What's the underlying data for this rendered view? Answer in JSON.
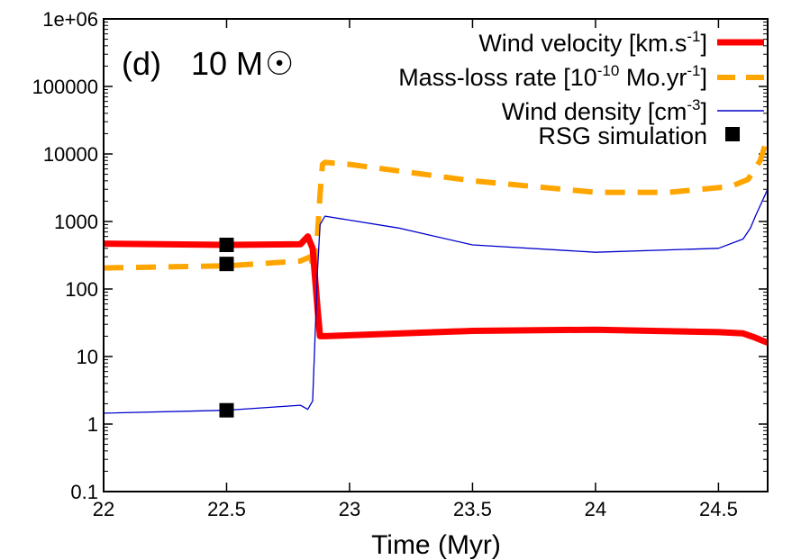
{
  "chart_data": {
    "type": "line",
    "title": "",
    "panel_label": "(d)",
    "panel_mass": "10 M",
    "panel_mass_symbol": "☉",
    "xlabel": "Time (Myr)",
    "ylabel": "",
    "xlim": [
      22,
      24.7
    ],
    "ylim": [
      0.1,
      1000000
    ],
    "yscale": "log",
    "grid": false,
    "legend_position": "top-right",
    "x_ticks": [
      "22",
      "22.5",
      "23",
      "23.5",
      "24",
      "24.5"
    ],
    "y_ticks": [
      "0.1",
      "1",
      "10",
      "100",
      "1000",
      "10000",
      "100000",
      "1e+06"
    ],
    "series": [
      {
        "name": "Wind velocity [km.s-1]",
        "legend": {
          "main": "Wind velocity [km.s",
          "sup": "-1",
          "close": "]"
        },
        "color": "#ff0000",
        "style": "solid-thick",
        "x": [
          22.0,
          22.5,
          22.8,
          22.83,
          22.85,
          22.87,
          22.88,
          22.9,
          23.5,
          24.0,
          24.5,
          24.6,
          24.65,
          24.7
        ],
        "y": [
          470,
          450,
          460,
          600,
          400,
          50,
          20,
          20,
          24,
          25,
          23,
          22,
          19,
          16
        ]
      },
      {
        "name": "Mass-loss rate [10-10 Mo.yr-1]",
        "legend": {
          "main": "Mass-loss rate [10",
          "sup": "-10",
          "mid": " Mo.yr",
          "sup2": "-1",
          "close": "]"
        },
        "color": "#ffa500",
        "style": "dashed",
        "x": [
          22.0,
          22.5,
          22.8,
          22.84,
          22.86,
          22.88,
          22.89,
          22.9,
          23.0,
          23.5,
          24.0,
          24.3,
          24.55,
          24.62,
          24.67,
          24.7
        ],
        "y": [
          205,
          220,
          260,
          300,
          180,
          2500,
          7000,
          7500,
          7000,
          4000,
          2700,
          2700,
          3300,
          4200,
          8000,
          18000
        ]
      },
      {
        "name": "Wind density [cm-3]",
        "legend": {
          "main": "Wind density [cm",
          "sup": "-3",
          "close": "]"
        },
        "color": "#0000cc",
        "style": "solid-thin",
        "x": [
          22.0,
          22.5,
          22.8,
          22.83,
          22.85,
          22.87,
          22.88,
          22.9,
          23.2,
          23.5,
          24.0,
          24.5,
          24.6,
          24.63,
          24.65,
          24.7
        ],
        "y": [
          1.45,
          1.6,
          1.9,
          1.65,
          2.2,
          200,
          900,
          1200,
          800,
          450,
          350,
          400,
          550,
          800,
          1200,
          3000
        ]
      }
    ],
    "markers": {
      "name": "RSG simulation",
      "color": "#000000",
      "points": [
        {
          "x": 22.5,
          "y": 450
        },
        {
          "x": 22.5,
          "y": 235
        },
        {
          "x": 22.5,
          "y": 1.6
        }
      ]
    }
  }
}
